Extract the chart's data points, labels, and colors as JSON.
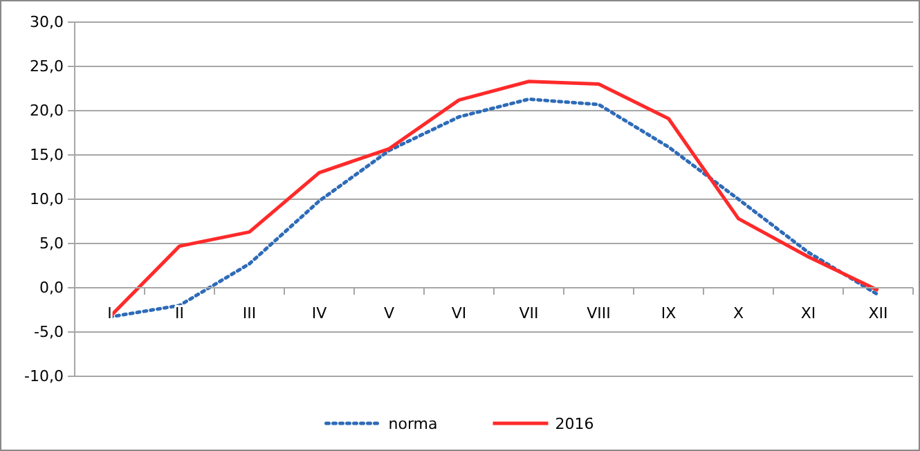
{
  "chart_data": {
    "type": "line",
    "categories": [
      "I",
      "II",
      "III",
      "IV",
      "V",
      "VI",
      "VII",
      "VIII",
      "IX",
      "X",
      "XI",
      "XII"
    ],
    "series": [
      {
        "name": "norma",
        "color": "#2e6bb8",
        "line_style": "dotted",
        "values": [
          -3.3,
          -2.0,
          2.7,
          9.8,
          15.5,
          19.3,
          21.3,
          20.7,
          15.9,
          10.0,
          4.0,
          -0.8
        ]
      },
      {
        "name": "2016",
        "color": "#ff2a2a",
        "line_style": "solid",
        "values": [
          -3.3,
          4.7,
          6.3,
          13.0,
          15.7,
          21.2,
          23.3,
          23.0,
          19.1,
          7.8,
          3.5,
          -0.3
        ]
      }
    ],
    "ylim": [
      -10,
      30
    ],
    "yticks": [
      {
        "value": -10,
        "label": "-10,0"
      },
      {
        "value": -5,
        "label": "-5,0"
      },
      {
        "value": 0,
        "label": "0,0"
      },
      {
        "value": 5,
        "label": "5,0"
      },
      {
        "value": 10,
        "label": "10,0"
      },
      {
        "value": 15,
        "label": "15,0"
      },
      {
        "value": 20,
        "label": "20,0"
      },
      {
        "value": 25,
        "label": "25,0"
      },
      {
        "value": 30,
        "label": "30,0"
      }
    ],
    "grid": "y",
    "legend": "bottom",
    "marker": "none"
  }
}
